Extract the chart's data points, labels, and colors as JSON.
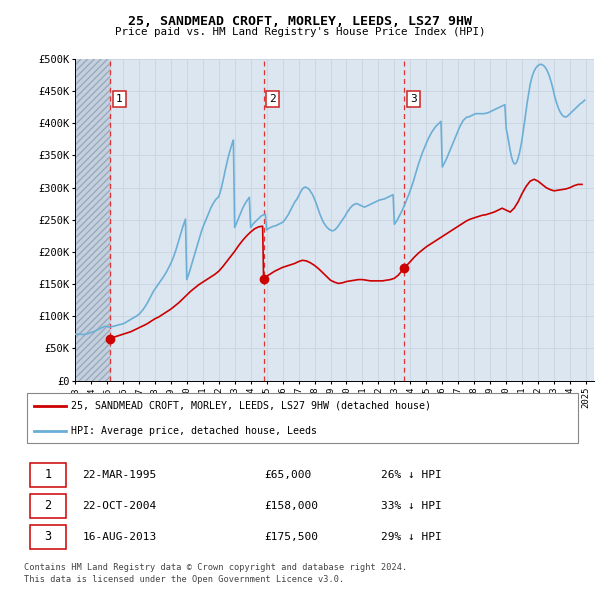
{
  "title": "25, SANDMEAD CROFT, MORLEY, LEEDS, LS27 9HW",
  "subtitle": "Price paid vs. HM Land Registry's House Price Index (HPI)",
  "xlim": [
    1993.0,
    2025.5
  ],
  "ylim": [
    0,
    500000
  ],
  "yticks": [
    0,
    50000,
    100000,
    150000,
    200000,
    250000,
    300000,
    350000,
    400000,
    450000,
    500000
  ],
  "ytick_labels": [
    "£0",
    "£50K",
    "£100K",
    "£150K",
    "£200K",
    "£250K",
    "£300K",
    "£350K",
    "£400K",
    "£450K",
    "£500K"
  ],
  "xticks": [
    1993,
    1994,
    1995,
    1996,
    1997,
    1998,
    1999,
    2000,
    2001,
    2002,
    2003,
    2004,
    2005,
    2006,
    2007,
    2008,
    2009,
    2010,
    2011,
    2012,
    2013,
    2014,
    2015,
    2016,
    2017,
    2018,
    2019,
    2020,
    2021,
    2022,
    2023,
    2024,
    2025
  ],
  "hpi_color": "#6baed6",
  "property_color": "#cc0000",
  "grid_color": "#c8d4e0",
  "transactions": [
    {
      "num": 1,
      "date": "22-MAR-1995",
      "price": 65000,
      "x": 1995.22,
      "pct": "26%",
      "dir": "↓"
    },
    {
      "num": 2,
      "date": "22-OCT-2004",
      "price": 158000,
      "x": 2004.81,
      "pct": "33%",
      "dir": "↓"
    },
    {
      "num": 3,
      "date": "16-AUG-2013",
      "price": 175500,
      "x": 2013.63,
      "pct": "29%",
      "dir": "↓"
    }
  ],
  "legend_label_property": "25, SANDMEAD CROFT, MORLEY, LEEDS, LS27 9HW (detached house)",
  "legend_label_hpi": "HPI: Average price, detached house, Leeds",
  "footnote1": "Contains HM Land Registry data © Crown copyright and database right 2024.",
  "footnote2": "This data is licensed under the Open Government Licence v3.0.",
  "hpi_x": [
    1993.0,
    1993.083,
    1993.167,
    1993.25,
    1993.333,
    1993.417,
    1993.5,
    1993.583,
    1993.667,
    1993.75,
    1993.833,
    1993.917,
    1994.0,
    1994.083,
    1994.167,
    1994.25,
    1994.333,
    1994.417,
    1994.5,
    1994.583,
    1994.667,
    1994.75,
    1994.833,
    1994.917,
    1995.0,
    1995.083,
    1995.167,
    1995.25,
    1995.333,
    1995.417,
    1995.5,
    1995.583,
    1995.667,
    1995.75,
    1995.833,
    1995.917,
    1996.0,
    1996.083,
    1996.167,
    1996.25,
    1996.333,
    1996.417,
    1996.5,
    1996.583,
    1996.667,
    1996.75,
    1996.833,
    1996.917,
    1997.0,
    1997.083,
    1997.167,
    1997.25,
    1997.333,
    1997.417,
    1997.5,
    1997.583,
    1997.667,
    1997.75,
    1997.833,
    1997.917,
    1998.0,
    1998.083,
    1998.167,
    1998.25,
    1998.333,
    1998.417,
    1998.5,
    1998.583,
    1998.667,
    1998.75,
    1998.833,
    1998.917,
    1999.0,
    1999.083,
    1999.167,
    1999.25,
    1999.333,
    1999.417,
    1999.5,
    1999.583,
    1999.667,
    1999.75,
    1999.833,
    1999.917,
    2000.0,
    2000.083,
    2000.167,
    2000.25,
    2000.333,
    2000.417,
    2000.5,
    2000.583,
    2000.667,
    2000.75,
    2000.833,
    2000.917,
    2001.0,
    2001.083,
    2001.167,
    2001.25,
    2001.333,
    2001.417,
    2001.5,
    2001.583,
    2001.667,
    2001.75,
    2001.833,
    2001.917,
    2002.0,
    2002.083,
    2002.167,
    2002.25,
    2002.333,
    2002.417,
    2002.5,
    2002.583,
    2002.667,
    2002.75,
    2002.833,
    2002.917,
    2003.0,
    2003.083,
    2003.167,
    2003.25,
    2003.333,
    2003.417,
    2003.5,
    2003.583,
    2003.667,
    2003.75,
    2003.833,
    2003.917,
    2004.0,
    2004.083,
    2004.167,
    2004.25,
    2004.333,
    2004.417,
    2004.5,
    2004.583,
    2004.667,
    2004.75,
    2004.833,
    2004.917,
    2005.0,
    2005.083,
    2005.167,
    2005.25,
    2005.333,
    2005.417,
    2005.5,
    2005.583,
    2005.667,
    2005.75,
    2005.833,
    2005.917,
    2006.0,
    2006.083,
    2006.167,
    2006.25,
    2006.333,
    2006.417,
    2006.5,
    2006.583,
    2006.667,
    2006.75,
    2006.833,
    2006.917,
    2007.0,
    2007.083,
    2007.167,
    2007.25,
    2007.333,
    2007.417,
    2007.5,
    2007.583,
    2007.667,
    2007.75,
    2007.833,
    2007.917,
    2008.0,
    2008.083,
    2008.167,
    2008.25,
    2008.333,
    2008.417,
    2008.5,
    2008.583,
    2008.667,
    2008.75,
    2008.833,
    2008.917,
    2009.0,
    2009.083,
    2009.167,
    2009.25,
    2009.333,
    2009.417,
    2009.5,
    2009.583,
    2009.667,
    2009.75,
    2009.833,
    2009.917,
    2010.0,
    2010.083,
    2010.167,
    2010.25,
    2010.333,
    2010.417,
    2010.5,
    2010.583,
    2010.667,
    2010.75,
    2010.833,
    2010.917,
    2011.0,
    2011.083,
    2011.167,
    2011.25,
    2011.333,
    2011.417,
    2011.5,
    2011.583,
    2011.667,
    2011.75,
    2011.833,
    2011.917,
    2012.0,
    2012.083,
    2012.167,
    2012.25,
    2012.333,
    2012.417,
    2012.5,
    2012.583,
    2012.667,
    2012.75,
    2012.833,
    2012.917,
    2013.0,
    2013.083,
    2013.167,
    2013.25,
    2013.333,
    2013.417,
    2013.5,
    2013.583,
    2013.667,
    2013.75,
    2013.833,
    2013.917,
    2014.0,
    2014.083,
    2014.167,
    2014.25,
    2014.333,
    2014.417,
    2014.5,
    2014.583,
    2014.667,
    2014.75,
    2014.833,
    2014.917,
    2015.0,
    2015.083,
    2015.167,
    2015.25,
    2015.333,
    2015.417,
    2015.5,
    2015.583,
    2015.667,
    2015.75,
    2015.833,
    2015.917,
    2016.0,
    2016.083,
    2016.167,
    2016.25,
    2016.333,
    2016.417,
    2016.5,
    2016.583,
    2016.667,
    2016.75,
    2016.833,
    2016.917,
    2017.0,
    2017.083,
    2017.167,
    2017.25,
    2017.333,
    2017.417,
    2017.5,
    2017.583,
    2017.667,
    2017.75,
    2017.833,
    2017.917,
    2018.0,
    2018.083,
    2018.167,
    2018.25,
    2018.333,
    2018.417,
    2018.5,
    2018.583,
    2018.667,
    2018.75,
    2018.833,
    2018.917,
    2019.0,
    2019.083,
    2019.167,
    2019.25,
    2019.333,
    2019.417,
    2019.5,
    2019.583,
    2019.667,
    2019.75,
    2019.833,
    2019.917,
    2020.0,
    2020.083,
    2020.167,
    2020.25,
    2020.333,
    2020.417,
    2020.5,
    2020.583,
    2020.667,
    2020.75,
    2020.833,
    2020.917,
    2021.0,
    2021.083,
    2021.167,
    2021.25,
    2021.333,
    2021.417,
    2021.5,
    2021.583,
    2021.667,
    2021.75,
    2021.833,
    2021.917,
    2022.0,
    2022.083,
    2022.167,
    2022.25,
    2022.333,
    2022.417,
    2022.5,
    2022.583,
    2022.667,
    2022.75,
    2022.833,
    2022.917,
    2023.0,
    2023.083,
    2023.167,
    2023.25,
    2023.333,
    2023.417,
    2023.5,
    2023.583,
    2023.667,
    2023.75,
    2023.833,
    2023.917,
    2024.0,
    2024.083,
    2024.167,
    2024.25,
    2024.333,
    2024.417,
    2024.5,
    2024.583,
    2024.667,
    2024.75,
    2024.833,
    2024.917
  ],
  "hpi_y": [
    72000,
    72200,
    72400,
    72300,
    72100,
    71800,
    71500,
    71700,
    72000,
    72500,
    73000,
    73800,
    74500,
    75200,
    76000,
    77000,
    78000,
    79000,
    80000,
    81000,
    82000,
    83000,
    83800,
    84500,
    84000,
    83500,
    83200,
    83500,
    84000,
    84500,
    85000,
    85500,
    86200,
    86800,
    87200,
    87600,
    88200,
    89000,
    90200,
    91500,
    92800,
    94000,
    95200,
    96500,
    97800,
    99000,
    100000,
    101500,
    103000,
    105000,
    107500,
    110000,
    113000,
    116000,
    119500,
    123000,
    127000,
    131000,
    135000,
    139000,
    142000,
    145000,
    148000,
    151000,
    154000,
    157000,
    160000,
    163000,
    166500,
    170000,
    174000,
    178000,
    182000,
    187000,
    192000,
    198000,
    204000,
    211000,
    218000,
    225000,
    232000,
    239000,
    245000,
    251000,
    157000,
    163000,
    169000,
    176000,
    183000,
    190000,
    197000,
    204000,
    211000,
    218000,
    225000,
    232000,
    238000,
    243000,
    248000,
    253000,
    258000,
    263000,
    268000,
    272000,
    276000,
    279000,
    282000,
    284000,
    286000,
    292000,
    300000,
    309000,
    318000,
    328000,
    337000,
    346000,
    354000,
    361000,
    368000,
    374000,
    238000,
    243000,
    248000,
    253000,
    258000,
    263000,
    268000,
    272000,
    276000,
    279000,
    282000,
    285000,
    238000,
    241000,
    244000,
    246000,
    248000,
    250000,
    252000,
    254000,
    256000,
    257000,
    258000,
    259000,
    234000,
    236000,
    237000,
    238000,
    239000,
    240000,
    240000,
    241000,
    242000,
    243000,
    244000,
    245000,
    246000,
    248000,
    251000,
    254000,
    257000,
    261000,
    265000,
    269000,
    273000,
    277000,
    280000,
    283000,
    287000,
    291000,
    295000,
    298000,
    300000,
    301000,
    300000,
    299000,
    297000,
    294000,
    291000,
    287000,
    282000,
    277000,
    271000,
    265000,
    259000,
    254000,
    249000,
    245000,
    242000,
    239000,
    237000,
    235000,
    234000,
    233000,
    233000,
    234000,
    236000,
    238000,
    241000,
    244000,
    247000,
    250000,
    253000,
    256000,
    260000,
    263000,
    266000,
    269000,
    271000,
    273000,
    274000,
    275000,
    275000,
    274000,
    273000,
    272000,
    271000,
    270000,
    270000,
    271000,
    272000,
    273000,
    274000,
    275000,
    276000,
    277000,
    278000,
    279000,
    280000,
    281000,
    281000,
    282000,
    282000,
    283000,
    284000,
    285000,
    286000,
    287000,
    288000,
    289000,
    243000,
    246000,
    249000,
    253000,
    257000,
    261000,
    265000,
    270000,
    275000,
    280000,
    285000,
    290000,
    296000,
    302000,
    308000,
    315000,
    322000,
    329000,
    336000,
    342000,
    348000,
    354000,
    359000,
    364000,
    369000,
    374000,
    378000,
    382000,
    386000,
    389000,
    392000,
    395000,
    397000,
    399000,
    401000,
    403000,
    332000,
    336000,
    340000,
    344000,
    349000,
    354000,
    359000,
    364000,
    369000,
    374000,
    379000,
    384000,
    389000,
    394000,
    398000,
    402000,
    405000,
    407000,
    409000,
    410000,
    410000,
    411000,
    412000,
    413000,
    414000,
    415000,
    415000,
    415000,
    415000,
    415000,
    415000,
    415000,
    415000,
    416000,
    416000,
    417000,
    418000,
    419000,
    420000,
    421000,
    422000,
    423000,
    424000,
    425000,
    426000,
    427000,
    428000,
    429000,
    392000,
    382000,
    370000,
    358000,
    348000,
    341000,
    337000,
    337000,
    340000,
    346000,
    354000,
    364000,
    376000,
    390000,
    405000,
    420000,
    435000,
    448000,
    460000,
    469000,
    476000,
    481000,
    485000,
    488000,
    490000,
    491000,
    492000,
    491000,
    490000,
    488000,
    485000,
    481000,
    476000,
    470000,
    463000,
    455000,
    446000,
    438000,
    431000,
    425000,
    420000,
    416000,
    413000,
    411000,
    410000,
    410000,
    411000,
    413000,
    415000,
    417000,
    419000,
    421000,
    423000,
    425000,
    427000,
    429000,
    431000,
    432000,
    434000,
    436000
  ],
  "prop_x": [
    1995.22,
    1995.3,
    1995.5,
    1995.75,
    1996.0,
    1996.25,
    1996.5,
    1996.75,
    1997.0,
    1997.25,
    1997.5,
    1997.75,
    1998.0,
    1998.25,
    1998.5,
    1998.75,
    1999.0,
    1999.25,
    1999.5,
    1999.75,
    2000.0,
    2000.25,
    2000.5,
    2000.75,
    2001.0,
    2001.25,
    2001.5,
    2001.75,
    2002.0,
    2002.25,
    2002.5,
    2002.75,
    2003.0,
    2003.25,
    2003.5,
    2003.75,
    2004.0,
    2004.25,
    2004.5,
    2004.75,
    2004.81,
    2005.0,
    2005.25,
    2005.5,
    2005.75,
    2006.0,
    2006.25,
    2006.5,
    2006.75,
    2007.0,
    2007.25,
    2007.5,
    2007.75,
    2008.0,
    2008.25,
    2008.5,
    2008.75,
    2009.0,
    2009.25,
    2009.5,
    2009.75,
    2010.0,
    2010.25,
    2010.5,
    2010.75,
    2011.0,
    2011.25,
    2011.5,
    2011.75,
    2012.0,
    2012.25,
    2012.5,
    2012.75,
    2013.0,
    2013.25,
    2013.63,
    2014.0,
    2014.25,
    2014.5,
    2014.75,
    2015.0,
    2015.25,
    2015.5,
    2015.75,
    2016.0,
    2016.25,
    2016.5,
    2016.75,
    2017.0,
    2017.25,
    2017.5,
    2017.75,
    2018.0,
    2018.25,
    2018.5,
    2018.75,
    2019.0,
    2019.25,
    2019.5,
    2019.75,
    2020.0,
    2020.25,
    2020.5,
    2020.75,
    2021.0,
    2021.25,
    2021.5,
    2021.75,
    2022.0,
    2022.25,
    2022.5,
    2022.75,
    2023.0,
    2023.25,
    2023.5,
    2023.75,
    2024.0,
    2024.25,
    2024.5,
    2024.75
  ],
  "prop_y": [
    65000,
    66000,
    68000,
    70000,
    72000,
    74000,
    76000,
    79000,
    82000,
    85000,
    88000,
    92000,
    96000,
    99000,
    103000,
    107000,
    111000,
    116000,
    121000,
    127000,
    133000,
    139000,
    144000,
    149000,
    153000,
    157000,
    161000,
    165000,
    170000,
    177000,
    185000,
    193000,
    201000,
    210000,
    218000,
    225000,
    231000,
    236000,
    239000,
    240000,
    158000,
    162000,
    166000,
    170000,
    173000,
    176000,
    178000,
    180000,
    182000,
    185000,
    187000,
    186000,
    183000,
    179000,
    174000,
    168000,
    162000,
    156000,
    153000,
    151000,
    152000,
    154000,
    155000,
    156000,
    157000,
    157000,
    156000,
    155000,
    155000,
    155000,
    155000,
    156000,
    157000,
    159000,
    164000,
    175500,
    185000,
    192000,
    198000,
    203000,
    208000,
    212000,
    216000,
    220000,
    224000,
    228000,
    232000,
    236000,
    240000,
    244000,
    248000,
    251000,
    253000,
    255000,
    257000,
    258000,
    260000,
    262000,
    265000,
    268000,
    265000,
    262000,
    268000,
    278000,
    291000,
    302000,
    310000,
    313000,
    310000,
    305000,
    300000,
    297000,
    295000,
    296000,
    297000,
    298000,
    300000,
    303000,
    305000,
    305000
  ]
}
